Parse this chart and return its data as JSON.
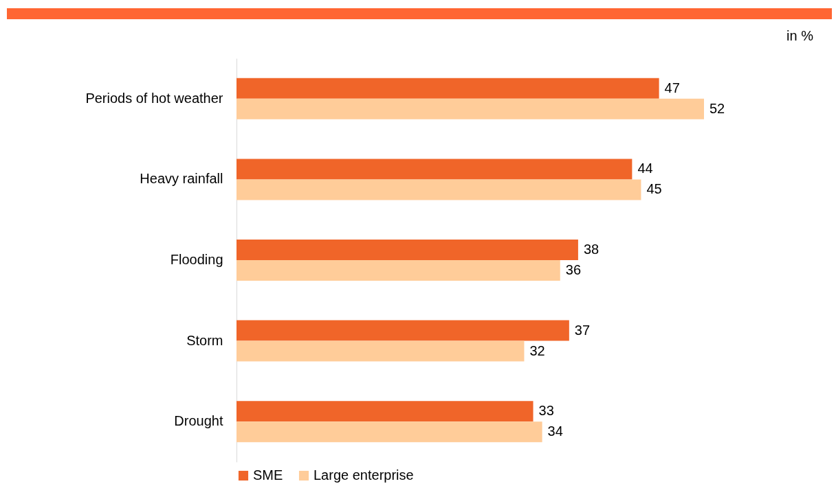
{
  "chart_data": {
    "type": "bar",
    "orientation": "horizontal",
    "categories": [
      "Periods of hot weather",
      "Heavy rainfall",
      "Flooding",
      "Storm",
      "Drought"
    ],
    "series": [
      {
        "name": "SME",
        "color": "#f06529",
        "values": [
          47,
          44,
          38,
          37,
          33
        ]
      },
      {
        "name": "Large enterprise",
        "color": "#ffcc99",
        "values": [
          52,
          45,
          36,
          32,
          34
        ]
      }
    ],
    "data_labels": true,
    "legend": "bottom",
    "annotations": [
      "in %"
    ]
  }
}
